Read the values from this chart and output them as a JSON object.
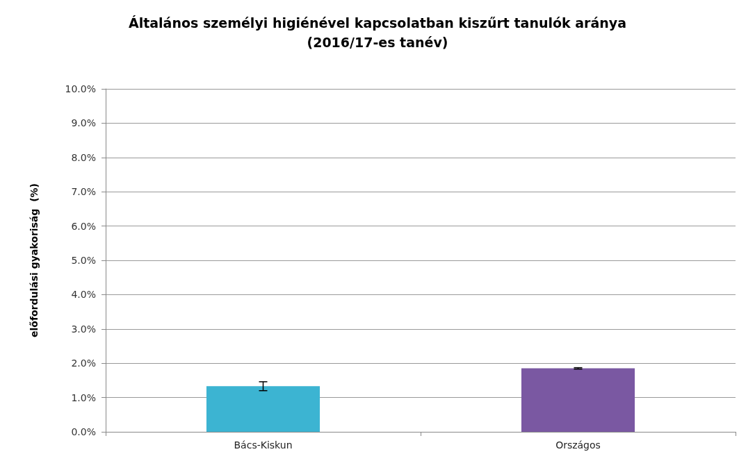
{
  "chart_data": {
    "type": "bar",
    "title": "Általános személyi higiénével kapcsolatban kiszűrt tanulók aránya\n(2016/17-es tanév)",
    "ylabel": "előfordulási gyakoriság  (%)",
    "categories": [
      "Bács-Kiskun",
      "Országos"
    ],
    "values": [
      1.33,
      1.85
    ],
    "colors": [
      "#3cb4d2",
      "#7a58a2"
    ],
    "errors": [
      0.13,
      0.02
    ],
    "ylim": [
      0,
      10
    ],
    "yticks": [
      {
        "value": 0,
        "label": "0.0%"
      },
      {
        "value": 1,
        "label": "1.0%"
      },
      {
        "value": 2,
        "label": "2.0%"
      },
      {
        "value": 3,
        "label": "3.0%"
      },
      {
        "value": 4,
        "label": "4.0%"
      },
      {
        "value": 5,
        "label": "5.0%"
      },
      {
        "value": 6,
        "label": "6.0%"
      },
      {
        "value": 7,
        "label": "7.0%"
      },
      {
        "value": 8,
        "label": "8.0%"
      },
      {
        "value": 9,
        "label": "9.0%"
      },
      {
        "value": 10,
        "label": "10.0%"
      }
    ],
    "grid": "y"
  }
}
